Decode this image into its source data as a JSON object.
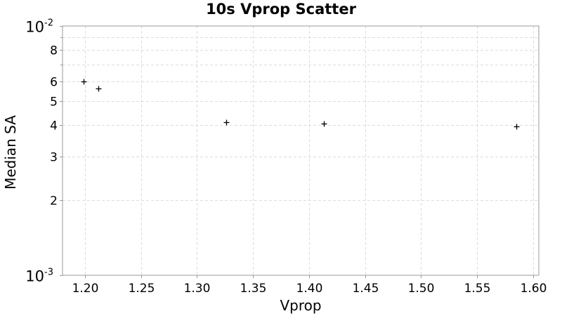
{
  "chart_data": {
    "type": "scatter",
    "title": "10s Vprop Scatter",
    "xlabel": "Vprop",
    "ylabel": "Median SA",
    "xlim": [
      1.18,
      1.605
    ],
    "ylim": [
      0.001,
      0.01
    ],
    "yscale": "log",
    "grid": true,
    "marker": "plus",
    "colors": {
      "marker": "#000000",
      "grid": "#dcdcdc",
      "frame": "#999999"
    },
    "x_ticks": [
      "1.20",
      "1.25",
      "1.30",
      "1.35",
      "1.40",
      "1.45",
      "1.50",
      "1.55",
      "1.60"
    ],
    "y_minor_ticks": [
      {
        "value": 0.002,
        "label": "2"
      },
      {
        "value": 0.003,
        "label": "3"
      },
      {
        "value": 0.004,
        "label": "4"
      },
      {
        "value": 0.005,
        "label": "5"
      },
      {
        "value": 0.006,
        "label": "6"
      },
      {
        "value": 0.008,
        "label": "8"
      }
    ],
    "y_decade_ticks": [
      {
        "value": 0.001,
        "base": "10",
        "exp": "-3"
      },
      {
        "value": 0.01,
        "base": "10",
        "exp": "-2"
      }
    ],
    "points": [
      {
        "x": 1.199,
        "y": 0.006
      },
      {
        "x": 1.212,
        "y": 0.0056
      },
      {
        "x": 1.326,
        "y": 0.0041
      },
      {
        "x": 1.413,
        "y": 0.00405
      },
      {
        "x": 1.585,
        "y": 0.00395
      }
    ]
  }
}
